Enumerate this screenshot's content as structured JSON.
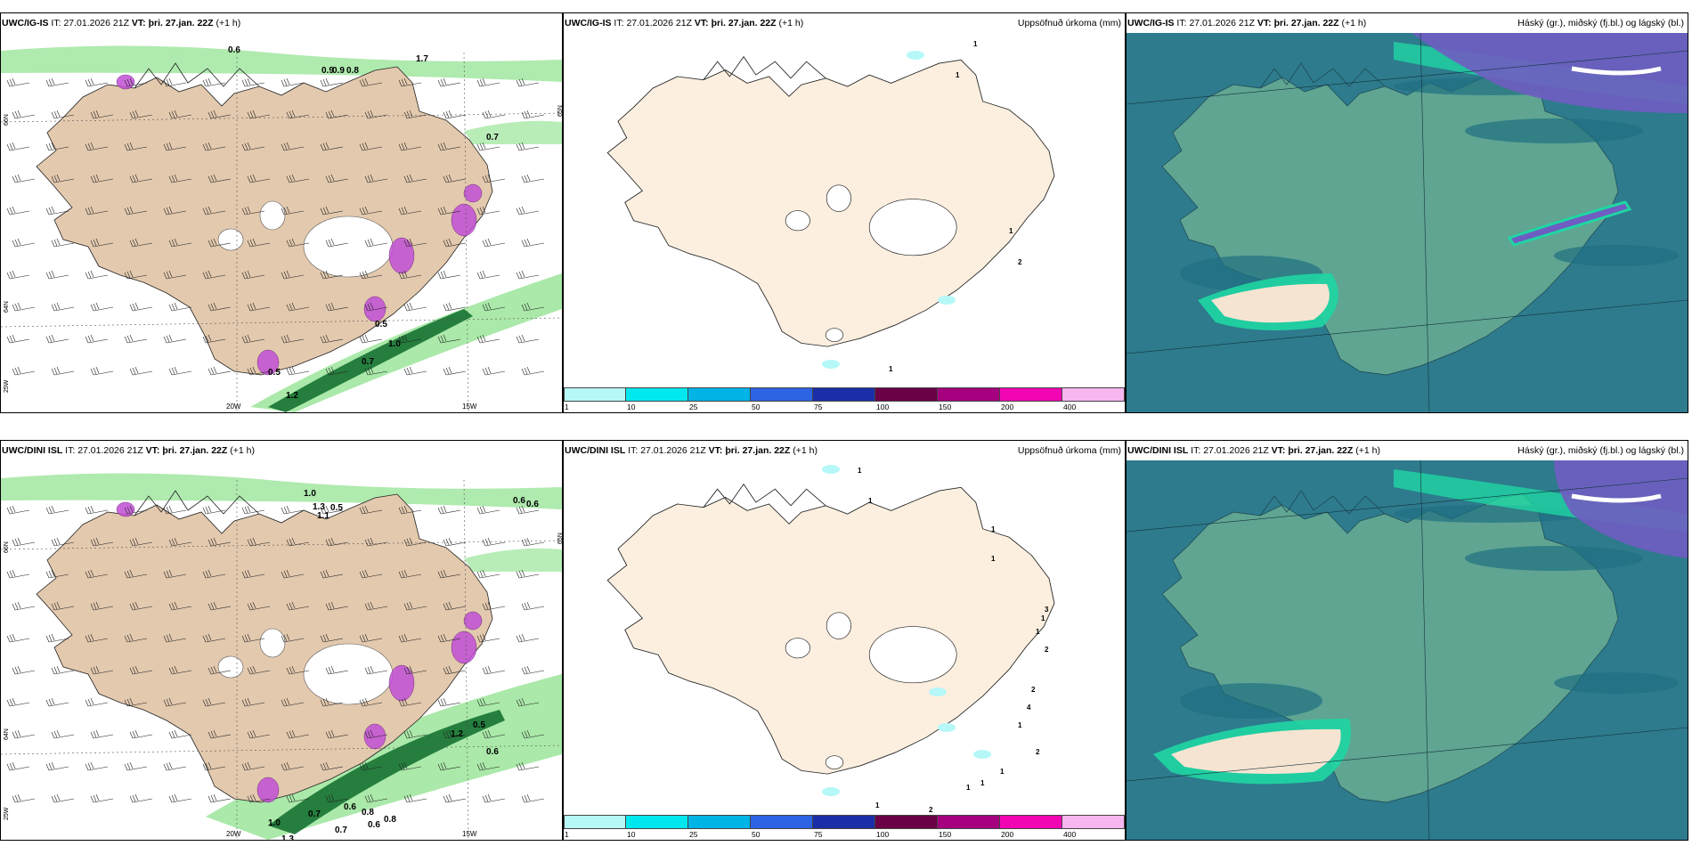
{
  "rows": [
    {
      "model": "UWC/IG-IS",
      "it_label": "IT:",
      "it_value": "27.01.2026 21Z",
      "vt_label": "VT:",
      "vt_value": "þri. 27.jan. 22Z",
      "lead": "(+1 h)",
      "precip_title": "Uppsöfnuð úrkoma (mm)",
      "cloud_title": "Háský (gr.), miðský (fj.bl.) og lágský (bl.)",
      "wind_labels": [
        "0.6",
        "0.9",
        "0.9",
        "0.8",
        "1.7",
        "0.7",
        "0.5",
        "1.0",
        "0.7",
        "0.5",
        "1.2"
      ],
      "precip_labels": [
        "1",
        "2",
        "1",
        "1",
        "1"
      ],
      "lon_labels": [
        "20W",
        "15W"
      ],
      "lat_labels": [
        "66N",
        "64N",
        "65N",
        "25W"
      ]
    },
    {
      "model": "UWC/DINI ISL",
      "it_label": "IT:",
      "it_value": "27.01.2026 21Z",
      "vt_label": "VT:",
      "vt_value": "þri. 27.jan. 22Z",
      "lead": "(+1 h)",
      "precip_title": "Uppsöfnuð úrkoma (mm)",
      "cloud_title": "Háský (gr.), miðský (fj.bl.) og lágský (bl.)",
      "wind_labels": [
        "1.0",
        "1.3",
        "0.5",
        "1.1",
        "0.6",
        "0.6",
        "0.5",
        "1.2",
        "0.6",
        "1.0",
        "0.7",
        "0.6",
        "0.8",
        "0.8",
        "0.6",
        "1.3",
        "0.7"
      ],
      "precip_labels": [
        "1",
        "1",
        "1",
        "1",
        "3",
        "1",
        "1",
        "2",
        "2",
        "4",
        "1",
        "2",
        "1",
        "1",
        "1",
        "2",
        "1"
      ],
      "lon_labels": [
        "20W",
        "15W"
      ],
      "lat_labels": [
        "66N",
        "64N",
        "65N",
        "25W"
      ]
    }
  ],
  "colorbar": {
    "ticks": [
      "1",
      "10",
      "25",
      "50",
      "75",
      "100",
      "150",
      "200",
      "400"
    ],
    "colors": [
      "#b6f7f7",
      "#00e8ee",
      "#00b4e6",
      "#2c64e4",
      "#1b2ea8",
      "#6a0046",
      "#a5007e",
      "#f205b3",
      "#f7b6ef"
    ]
  },
  "colors": {
    "land": "#e3c9ae",
    "land_light": "#fcefe0",
    "sea_teal": "#2d7b8d",
    "land_cloud": "#5fa592",
    "precip_green": "#9be59a",
    "precip_dark": "#0e6b2c",
    "cloud_purple": "#6f5dc1",
    "magenta": "#c24fd6"
  }
}
